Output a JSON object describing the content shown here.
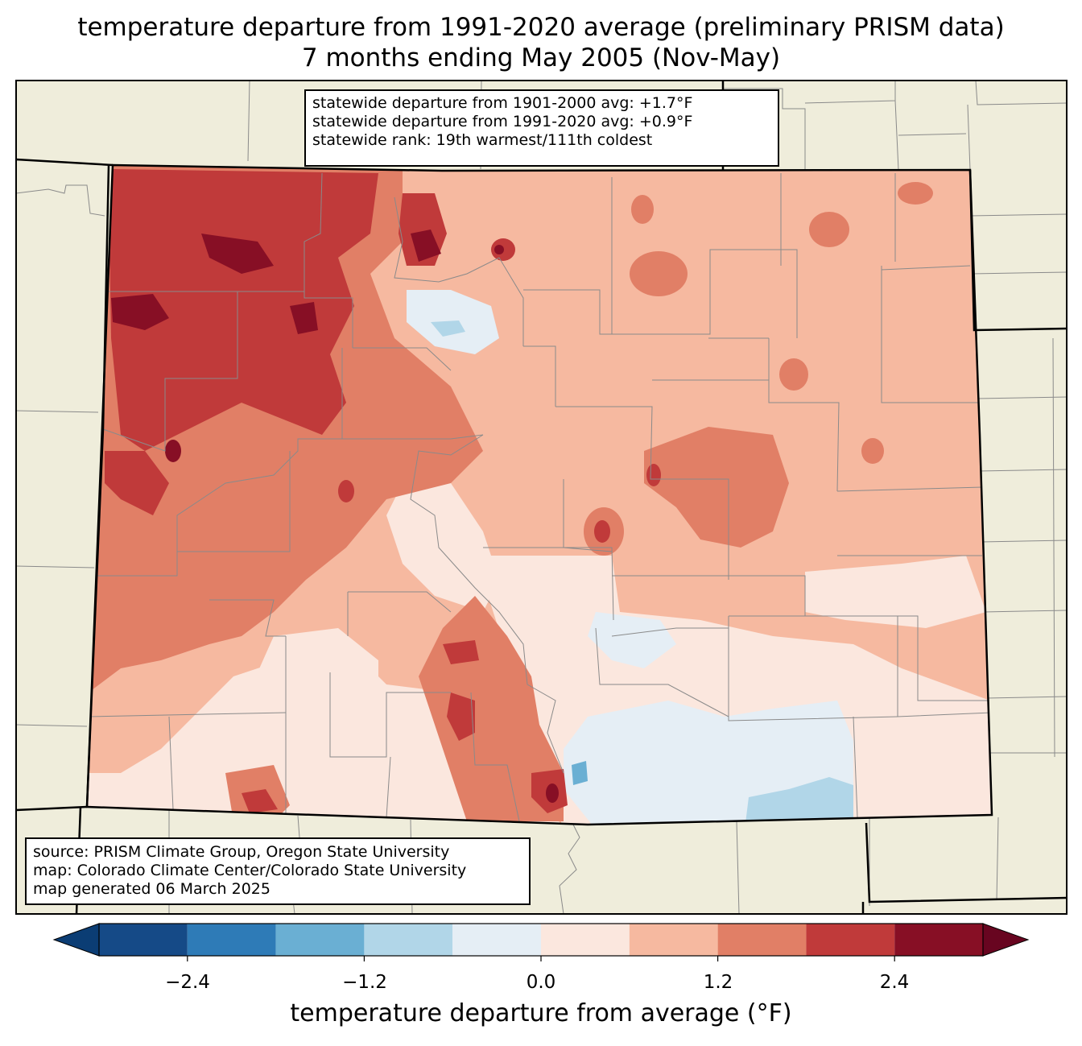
{
  "title": {
    "line1": "temperature departure from 1991-2020 average (preliminary PRISM data)",
    "line2": "7 months ending May 2005 (Nov-May)"
  },
  "stats": {
    "line1": "statewide departure from 1901-2000 avg: +1.7°F",
    "line2": "statewide departure from 1991-2020 avg: +0.9°F",
    "line3": "statewide rank: 19th warmest/111th coldest"
  },
  "source": {
    "line1": "source: PRISM Climate Group, Oregon State University",
    "line2": "map: Colorado Climate Center/Colorado State University",
    "line3": "map generated 06 March 2025"
  },
  "colorbar": {
    "label": "temperature departure from average (°F)",
    "ticks": [
      "−2.4",
      "−1.2",
      "0.0",
      "1.2",
      "2.4"
    ],
    "levels": [
      -3.0,
      -2.4,
      -1.8,
      -1.2,
      -0.6,
      0.0,
      0.6,
      1.2,
      1.8,
      2.4,
      3.0
    ],
    "colors": [
      "#0b3d74",
      "#154a87",
      "#2e7bb7",
      "#6aafd3",
      "#b1d6e8",
      "#e5eef5",
      "#fbe7de",
      "#f6b9a0",
      "#e17f66",
      "#c03a3a",
      "#870f25",
      "#680520"
    ]
  },
  "map_colors": {
    "background": "#efeddb",
    "border": "#000000",
    "county_line": "#8a8a8a"
  }
}
